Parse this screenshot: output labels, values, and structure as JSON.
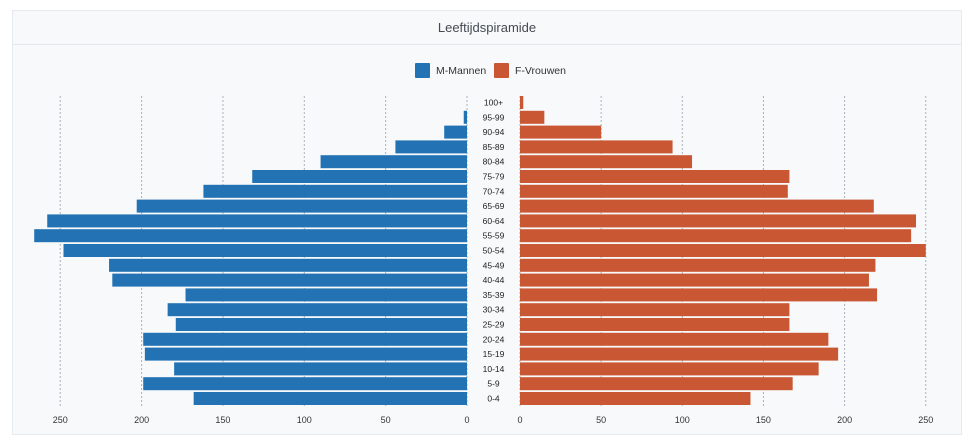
{
  "panel": {
    "title": "Leeftijdspiramide"
  },
  "chart_data": {
    "type": "bar",
    "orientation": "horizontal-pyramid",
    "categories": [
      "100+",
      "95-99",
      "90-94",
      "85-89",
      "80-84",
      "75-79",
      "70-74",
      "65-69",
      "60-64",
      "55-59",
      "50-54",
      "45-49",
      "40-44",
      "35-39",
      "30-34",
      "25-29",
      "20-24",
      "15-19",
      "10-14",
      "5-9",
      "0-4"
    ],
    "series": [
      {
        "name": "M-Mannen",
        "color": "#2272b4",
        "values": [
          0,
          2,
          14,
          44,
          90,
          132,
          162,
          203,
          258,
          266,
          248,
          220,
          218,
          173,
          184,
          179,
          199,
          198,
          180,
          199,
          168
        ]
      },
      {
        "name": "F-Vrouwen",
        "color": "#c95733",
        "values": [
          2,
          15,
          50,
          94,
          106,
          166,
          165,
          218,
          244,
          241,
          250,
          219,
          215,
          220,
          166,
          166,
          190,
          196,
          184,
          168,
          142
        ]
      }
    ],
    "left_axis": {
      "ticks": [
        250,
        200,
        150,
        100,
        50,
        0
      ],
      "range": [
        0,
        270
      ]
    },
    "right_axis": {
      "ticks": [
        0,
        50,
        100,
        150,
        200,
        250
      ],
      "range": [
        0,
        255
      ]
    },
    "grid": "vertical-dashed",
    "legend": "top-center"
  }
}
